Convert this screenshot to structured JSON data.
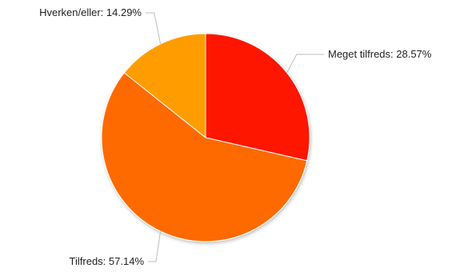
{
  "chart_data": {
    "type": "pie",
    "title": "",
    "slices": [
      {
        "label": "Meget tilfreds: 28.57%",
        "category": "Meget tilfreds",
        "value": 28.57,
        "color": "#ff1500"
      },
      {
        "label": "Tilfreds: 57.14%",
        "category": "Tilfreds",
        "value": 57.14,
        "color": "#ff6a00"
      },
      {
        "label": "Hverken/eller: 14.29%",
        "category": "Hverken/eller",
        "value": 14.29,
        "color": "#ff9d00"
      }
    ],
    "legend": "none"
  }
}
